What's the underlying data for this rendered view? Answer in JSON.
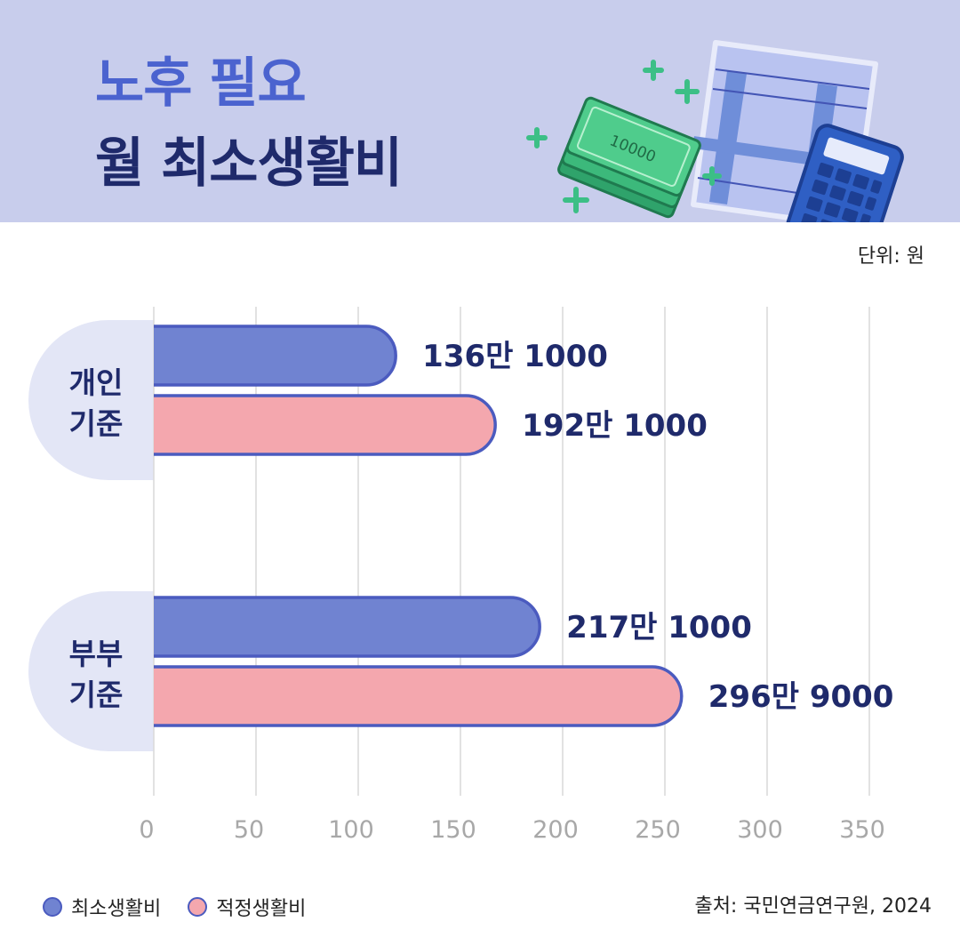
{
  "header": {
    "title_line1": "노후 필요",
    "title_line2": "월 최소생활비",
    "illustration_icons": [
      "money-stack-icon",
      "document-icon",
      "calculator-icon",
      "sparkle-plus-icon"
    ]
  },
  "unit_label": "단위: 원",
  "colors": {
    "header_bg": "#c8cdec",
    "minimum": "#7083d1",
    "adequate": "#f4a7ae",
    "bar_border": "#4b5bbf",
    "value_text": "#1f2a6b",
    "group_label_bg": "#e3e6f6"
  },
  "chart_data": {
    "type": "bar",
    "orientation": "horizontal",
    "categories": [
      "개인\n기준",
      "부부\n기준"
    ],
    "category_lines": [
      [
        "개인",
        "기준"
      ],
      [
        "부부",
        "기준"
      ]
    ],
    "series": [
      {
        "name": "최소생활비",
        "values": [
          136.1,
          217.1
        ],
        "labels": [
          "136만 1000",
          "217만 1000"
        ],
        "color": "#7083d1"
      },
      {
        "name": "적정생활비",
        "values": [
          192.1,
          296.9
        ],
        "labels": [
          "192만 1000",
          "296만 9000"
        ],
        "color": "#f4a7ae"
      }
    ],
    "x_ticks": [
      "0",
      "50",
      "100",
      "150",
      "200",
      "250",
      "300",
      "350"
    ],
    "xlim": [
      0,
      350
    ],
    "grid": true,
    "legend_position": "bottom-left"
  },
  "legend": {
    "items": [
      {
        "label": "최소생활비",
        "color": "#7083d1"
      },
      {
        "label": "적정생활비",
        "color": "#f4a7ae"
      }
    ]
  },
  "source": "출처: 국민연금연구원, 2024"
}
